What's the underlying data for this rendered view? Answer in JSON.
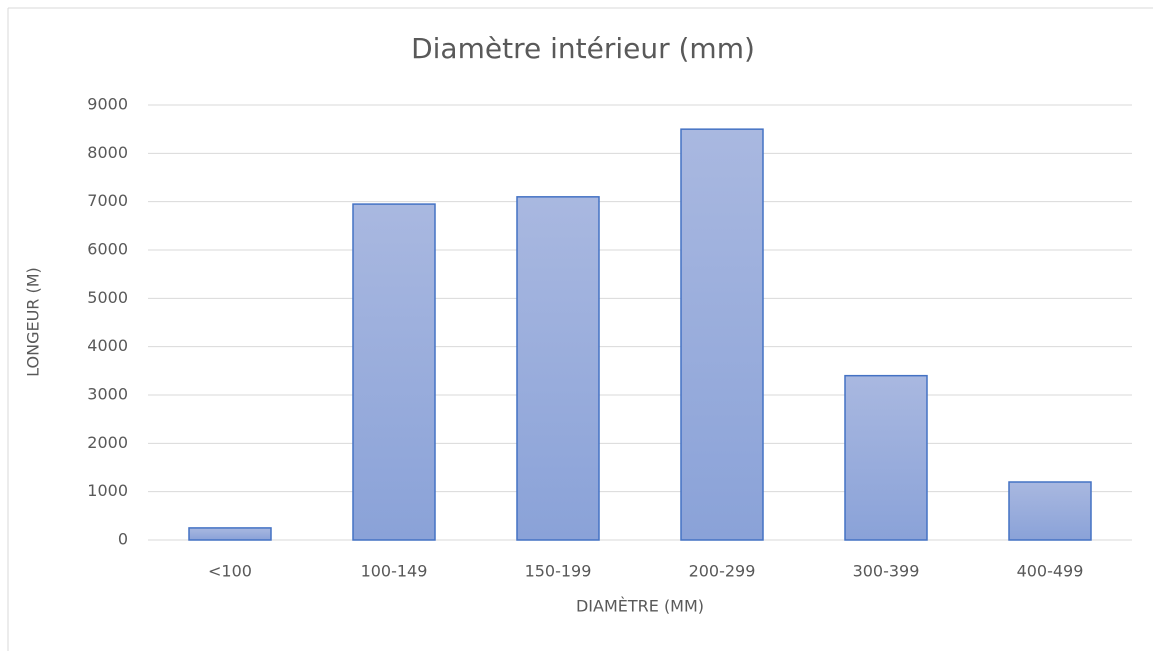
{
  "chart_data": {
    "type": "bar",
    "title": "Diamètre intérieur (mm)",
    "x_label": "DIAMÈTRE (MM)",
    "y_label": "LONGEUR (M)",
    "categories": [
      "<100",
      "100-149",
      "150-199",
      "200-299",
      "300-399",
      "400-499"
    ],
    "values": [
      250,
      6950,
      7100,
      8500,
      3400,
      1200
    ],
    "color": "#8aa2d8",
    "ylim": [
      0,
      9000
    ],
    "yticks": [
      0,
      1000,
      2000,
      3000,
      4000,
      5000,
      6000,
      7000,
      8000,
      9000
    ],
    "grid": true
  }
}
